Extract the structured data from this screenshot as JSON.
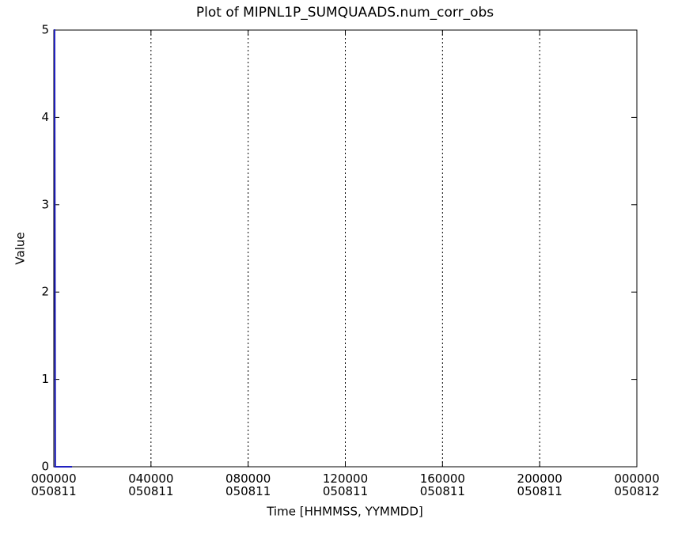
{
  "chart_data": {
    "type": "line",
    "title": "Plot of MIPNL1P_SUMQUAADS.num_corr_obs",
    "x_label": "Time [HHMMSS, YYMMDD]",
    "y_label": "Value",
    "x": [
      0,
      0.03,
      0.06,
      0.75
    ],
    "series": [
      {
        "name": "num_corr_obs",
        "color": "#2020c0",
        "values": [
          5,
          5,
          0,
          0
        ]
      }
    ],
    "xlim": [
      0,
      24
    ],
    "xticks": [
      {
        "value": 0,
        "label": "000000\n050811"
      },
      {
        "value": 4,
        "label": "040000\n050811"
      },
      {
        "value": 8,
        "label": "080000\n050811"
      },
      {
        "value": 12,
        "label": "120000\n050811"
      },
      {
        "value": 16,
        "label": "160000\n050811"
      },
      {
        "value": 20,
        "label": "200000\n050811"
      },
      {
        "value": 24,
        "label": "000000\n050812"
      }
    ],
    "ylim": [
      0,
      5
    ],
    "yticks": [
      0,
      1,
      2,
      3,
      4,
      5
    ],
    "grid": "x"
  }
}
